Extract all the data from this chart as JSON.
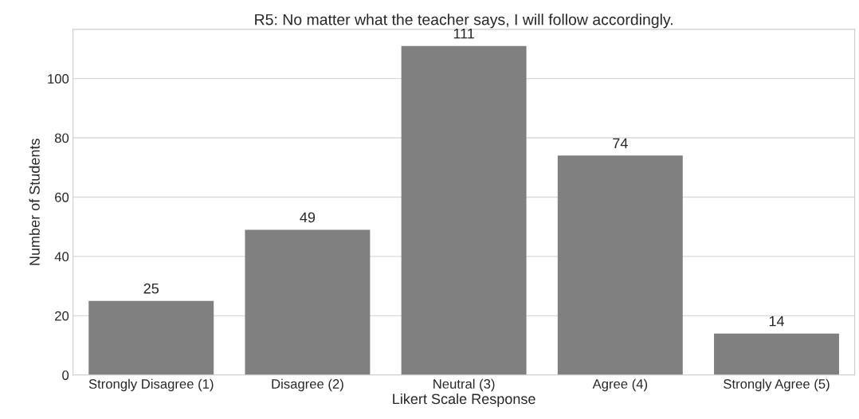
{
  "chart_data": {
    "type": "bar",
    "title": "R5: No matter what the teacher says, I will follow accordingly.",
    "xlabel": "Likert Scale Response",
    "ylabel": "Number of Students",
    "categories": [
      "Strongly Disagree (1)",
      "Disagree (2)",
      "Neutral (3)",
      "Agree (4)",
      "Strongly Agree (5)"
    ],
    "values": [
      25,
      49,
      111,
      74,
      14
    ],
    "color": "#808080",
    "ylim": [
      0,
      116.6
    ],
    "yticks": [
      0,
      20,
      40,
      60,
      80,
      100
    ],
    "grid": "y",
    "data_labels": true,
    "legend": false
  }
}
